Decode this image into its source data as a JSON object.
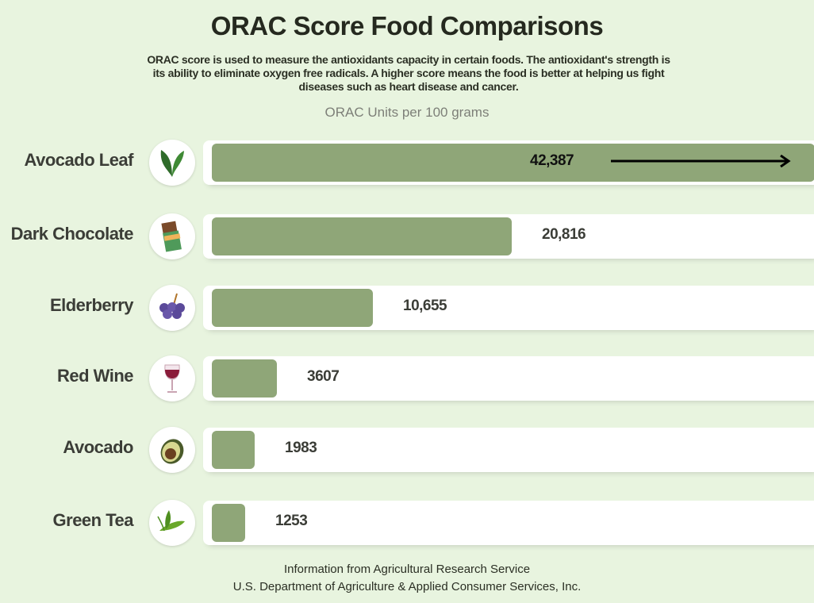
{
  "chart_data": {
    "type": "bar",
    "orientation": "horizontal",
    "title": "ORAC Score Food Comparisons",
    "subtitle": "ORAC score is used to measure the antioxidants capacity in certain foods. The antioxidant's strength is its ability to eliminate oxygen free radicals. A higher score means the food is better at helping us fight diseases such as heart disease and cancer.",
    "unit_label": "ORAC Units per 100 grams",
    "categories": [
      "Avocado Leaf",
      "Dark Chocolate",
      "Elderberry",
      "Red Wine",
      "Avocado",
      "Green Tea"
    ],
    "values": [
      42387,
      20816,
      10655,
      3607,
      1983,
      1253
    ],
    "value_labels": [
      "42,387",
      "20,816",
      "10,655",
      "3607",
      "1983",
      "1253"
    ],
    "icons": [
      "leaf-icon",
      "chocolate-bar-icon",
      "elderberry-icon",
      "wine-glass-icon",
      "avocado-icon",
      "tea-leaf-icon"
    ],
    "bar_color": "#8fa678",
    "background_color": "#e8f4df",
    "overflow_arrow_on": "Avocado Leaf"
  },
  "footer": {
    "line1": "Information from Agricultural Research Service",
    "line2": "U.S. Department of Agriculture & Applied Consumer Services, Inc."
  }
}
